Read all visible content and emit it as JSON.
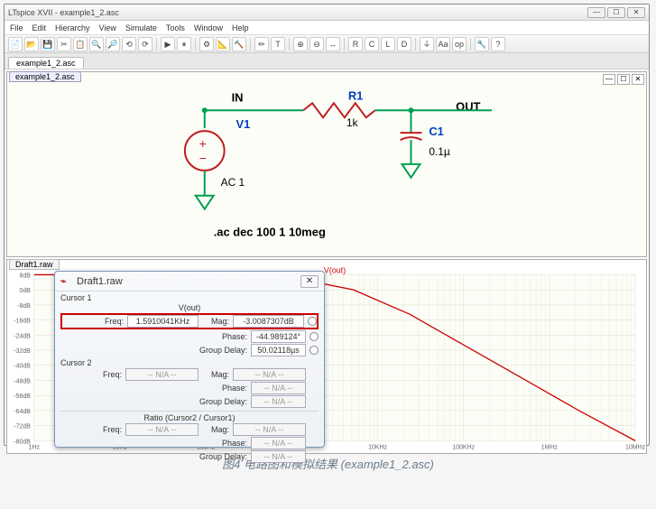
{
  "app": {
    "title": "LTspice XVII - example1_2.asc",
    "menu": [
      "File",
      "Edit",
      "Hierarchy",
      "View",
      "Simulate",
      "Tools",
      "Window",
      "Help"
    ],
    "toolbar_icons": [
      "📄",
      "📂",
      "💾",
      "✂",
      "📋",
      "🔍",
      "🔎",
      "⟲",
      "⟳",
      "│",
      "▶",
      "⏸",
      "│",
      "⚙",
      "📐",
      "🔨",
      "│",
      "✏",
      "T",
      "│",
      "⊕",
      "⊖",
      "↔",
      "│",
      "R",
      "C",
      "L",
      "D",
      "│",
      "⏚",
      "Aa",
      "op",
      "│",
      "🔧",
      "?"
    ]
  },
  "tabs": {
    "main": "example1_2.asc"
  },
  "schematic": {
    "tab": "example1_2.asc",
    "labels": {
      "in": "IN",
      "out": "OUT",
      "v1_name": "V1",
      "v1_val": "AC 1",
      "r1_name": "R1",
      "r1_val": "1k",
      "c1_name": "C1",
      "c1_val": "0.1µ"
    },
    "directive": ".ac dec 100 1 10meg",
    "colors": {
      "wire": "#00a050",
      "symbol": "#c02020",
      "text": "#0040c0",
      "gnd": "#00a050"
    }
  },
  "plot": {
    "tab": "Draft1.raw",
    "trace_label": "V(out)",
    "trace_color": "#cc0000",
    "bg": "#fdfdf7",
    "grid": "#d8e0c8",
    "y_labels": [
      "8dB",
      "0dB",
      "-8dB",
      "-16dB",
      "-24dB",
      "-32dB",
      "-40dB",
      "-48dB",
      "-56dB",
      "-64dB",
      "-72dB",
      "-80dB"
    ],
    "x_labels": [
      "1Hz",
      "10Hz",
      "100Hz",
      "1KHz",
      "10KHz",
      "100KHz",
      "1MHz",
      "10MHz"
    ],
    "curve": [
      [
        0,
        8
      ],
      [
        60,
        8
      ],
      [
        180,
        8
      ],
      [
        280,
        6
      ],
      [
        340,
        0
      ],
      [
        400,
        -13
      ],
      [
        460,
        -30
      ],
      [
        520,
        -47
      ],
      [
        580,
        -64
      ],
      [
        640,
        -80
      ]
    ]
  },
  "cursor": {
    "title": "Draft1.raw",
    "section1": "Cursor 1",
    "vout": "V(out)",
    "c1": {
      "freq_label": "Freq:",
      "freq": "1.5910041KHz",
      "mag_label": "Mag:",
      "mag": "-3.0087307dB",
      "phase_label": "Phase:",
      "phase": "-44.989124°",
      "gd_label": "Group Delay:",
      "gd": "50.02118µs"
    },
    "section2": "Cursor 2",
    "c2": {
      "freq": "-- N/A --",
      "mag": "-- N/A --",
      "phase": "-- N/A --",
      "gd": "-- N/A --"
    },
    "ratio_label": "Ratio (Cursor2 / Cursor1)",
    "ratio": {
      "freq": "-- N/A --",
      "mag": "-- N/A --",
      "phase": "-- N/A --",
      "gd": "-- N/A --"
    }
  },
  "caption": "图4 电路图和模拟结果 (example1_2.asc)"
}
